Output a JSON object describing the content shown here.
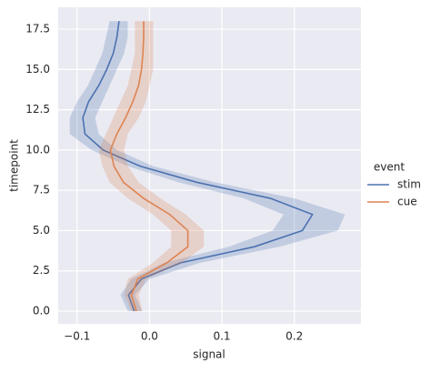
{
  "chart_data": {
    "type": "line",
    "orientation": "horizontal",
    "xlabel": "signal",
    "ylabel": "timepoint",
    "y": [
      0,
      1,
      2,
      3,
      4,
      5,
      6,
      7,
      8,
      9,
      10,
      11,
      12,
      13,
      14,
      15,
      16,
      17,
      18
    ],
    "series": [
      {
        "name": "stim",
        "color": "#4c72b0",
        "values": [
          -0.021,
          -0.029,
          -0.011,
          0.043,
          0.145,
          0.211,
          0.225,
          0.167,
          0.065,
          -0.013,
          -0.064,
          -0.089,
          -0.092,
          -0.084,
          -0.07,
          -0.059,
          -0.05,
          -0.045,
          -0.042
        ],
        "lower": [
          -0.03,
          -0.04,
          -0.025,
          0.02,
          0.11,
          0.17,
          0.185,
          0.13,
          0.04,
          -0.03,
          -0.08,
          -0.11,
          -0.11,
          -0.1,
          -0.085,
          -0.075,
          -0.065,
          -0.06,
          -0.055
        ],
        "upper": [
          -0.01,
          -0.02,
          0.0,
          0.07,
          0.18,
          0.26,
          0.27,
          0.2,
          0.09,
          0.005,
          -0.045,
          -0.07,
          -0.075,
          -0.065,
          -0.055,
          -0.045,
          -0.035,
          -0.03,
          -0.03
        ]
      },
      {
        "name": "cue",
        "color": "#dd8452",
        "values": [
          -0.018,
          -0.025,
          -0.016,
          0.024,
          0.053,
          0.053,
          0.028,
          -0.008,
          -0.036,
          -0.049,
          -0.054,
          -0.045,
          -0.033,
          -0.023,
          -0.015,
          -0.011,
          -0.009,
          -0.008,
          -0.008
        ],
        "lower": [
          -0.025,
          -0.035,
          -0.03,
          0.005,
          0.03,
          0.03,
          0.005,
          -0.03,
          -0.055,
          -0.065,
          -0.07,
          -0.06,
          -0.05,
          -0.04,
          -0.03,
          -0.025,
          -0.02,
          -0.02,
          -0.02
        ],
        "upper": [
          -0.01,
          -0.015,
          -0.005,
          0.045,
          0.075,
          0.075,
          0.05,
          0.015,
          -0.015,
          -0.03,
          -0.035,
          -0.03,
          -0.015,
          -0.005,
          0.0,
          0.005,
          0.005,
          0.005,
          0.005
        ]
      }
    ],
    "xlim": [
      -0.126,
      0.292
    ],
    "xticks": [
      {
        "value": -0.1,
        "label": "−0.1"
      },
      {
        "value": 0.0,
        "label": "0.0"
      },
      0.1,
      0.2
    ],
    "ylim": [
      -0.79,
      18.86
    ],
    "yticks": [
      {
        "value": 0.0,
        "label": "0.0"
      },
      2.5,
      {
        "value": 5.0,
        "label": "5.0"
      },
      7.5,
      {
        "value": 10.0,
        "label": "10.0"
      },
      12.5,
      {
        "value": 15.0,
        "label": "15.0"
      },
      17.5
    ],
    "grid": true,
    "legend_title": "event",
    "legend": "right"
  }
}
